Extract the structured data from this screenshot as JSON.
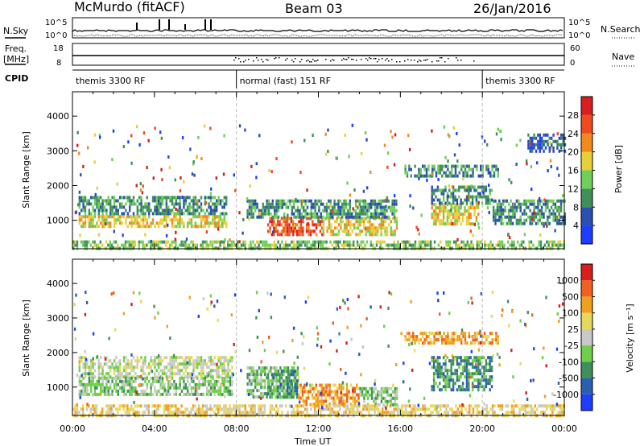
{
  "header": {
    "station": "McMurdo (fitACF)",
    "beam": "Beam 03",
    "date": "26/Jan/2016"
  },
  "aux_labels": {
    "nsky": "N.Sky",
    "nsearch": "N.Search",
    "freq": "Freq.",
    "freq_unit": "[MHz]",
    "nave": "Nave",
    "cpid": "CPID",
    "nsky_ticks": [
      "10^5",
      "10^0"
    ],
    "nsearch_ticks": [
      "10^5",
      "10^0"
    ],
    "freq_ticks": [
      "18",
      "8"
    ],
    "nave_ticks": [
      "60",
      "0"
    ]
  },
  "cpid_segments": [
    {
      "label": "themis 3300 RF",
      "start": 0,
      "end": 8
    },
    {
      "label": "normal (fast) 151 RF",
      "start": 8,
      "end": 20
    },
    {
      "label": "themis 3300 RF",
      "start": 20,
      "end": 24
    }
  ],
  "chart_data": [
    {
      "type": "heatmap",
      "name": "power",
      "xlabel": "Time UT",
      "ylabel": "Slant Range [km]",
      "xlim": [
        0,
        24
      ],
      "ylim": [
        180,
        4700
      ],
      "x_ticks": [
        0,
        4,
        8,
        12,
        16,
        20,
        24
      ],
      "x_tick_labels": [
        "00:00",
        "04:00",
        "08:00",
        "12:00",
        "16:00",
        "20:00",
        "00:00"
      ],
      "y_ticks": [
        1000,
        2000,
        3000,
        4000
      ],
      "colorbar": {
        "label": "Power [dB]",
        "ticks": [
          "4",
          "8",
          "12",
          "16",
          "20",
          "24",
          "28"
        ],
        "colors": [
          "#1f3dff",
          "#2b4fb0",
          "#3f8f5a",
          "#6fcf5a",
          "#e8cf3a",
          "#f08a1f",
          "#f04a1f",
          "#d81e1e"
        ]
      },
      "regions": [
        {
          "t": [
            0.3,
            7.5
          ],
          "r": [
            850,
            1150
          ],
          "level": 4
        },
        {
          "t": [
            0.3,
            7.5
          ],
          "r": [
            1150,
            1700
          ],
          "level": 2
        },
        {
          "t": [
            9.5,
            12.2
          ],
          "r": [
            600,
            1100
          ],
          "level": 6
        },
        {
          "t": [
            12.2,
            15.8
          ],
          "r": [
            600,
            1100
          ],
          "level": 4
        },
        {
          "t": [
            8.5,
            15.8
          ],
          "r": [
            1100,
            1600
          ],
          "level": 2
        },
        {
          "t": [
            17.5,
            19.8
          ],
          "r": [
            900,
            1500
          ],
          "level": 4
        },
        {
          "t": [
            17.5,
            20.5
          ],
          "r": [
            1500,
            2000
          ],
          "level": 2
        },
        {
          "t": [
            20.5,
            24
          ],
          "r": [
            900,
            1600
          ],
          "level": 2
        },
        {
          "t": [
            16.2,
            20.8
          ],
          "r": [
            2300,
            2600
          ],
          "level": 2
        },
        {
          "t": [
            22.2,
            24
          ],
          "r": [
            3000,
            3500
          ],
          "level": 1
        },
        {
          "t": [
            0,
            24
          ],
          "r": [
            180,
            420
          ],
          "level": 3
        }
      ]
    },
    {
      "type": "heatmap",
      "name": "velocity",
      "xlabel": "Time UT",
      "ylabel": "Slant Range [km]",
      "xlim": [
        0,
        24
      ],
      "ylim": [
        180,
        4700
      ],
      "x_ticks": [
        0,
        4,
        8,
        12,
        16,
        20,
        24
      ],
      "x_tick_labels": [
        "00:00",
        "04:00",
        "08:00",
        "12:00",
        "16:00",
        "20:00",
        "00:00"
      ],
      "y_ticks": [
        1000,
        2000,
        3000,
        4000
      ],
      "colorbar": {
        "label": "Velocity [m s⁻¹]",
        "ticks": [
          "1000",
          "500",
          "100",
          "25",
          "-25",
          "-100",
          "-500",
          "-1000"
        ],
        "colors": [
          "#1f3dff",
          "#2b5fb0",
          "#3f8f5a",
          "#6fcf4a",
          "#c8c8c8",
          "#e8d85a",
          "#f0a01f",
          "#f0601f",
          "#d81e1e"
        ]
      },
      "regions": [
        {
          "t": [
            0.3,
            7.8
          ],
          "r": [
            1300,
            1900
          ],
          "level": 4
        },
        {
          "t": [
            0.3,
            7.8
          ],
          "r": [
            800,
            1300
          ],
          "level": 3
        },
        {
          "t": [
            8.5,
            11.0
          ],
          "r": [
            700,
            1600
          ],
          "level": 3
        },
        {
          "t": [
            9.5,
            11.0
          ],
          "r": [
            700,
            1500
          ],
          "level": 2
        },
        {
          "t": [
            11.0,
            14.0
          ],
          "r": [
            500,
            1100
          ],
          "level": 6
        },
        {
          "t": [
            14.0,
            15.8
          ],
          "r": [
            500,
            1000
          ],
          "level": 3
        },
        {
          "t": [
            17.5,
            20.5
          ],
          "r": [
            900,
            1900
          ],
          "level": 2
        },
        {
          "t": [
            0,
            24
          ],
          "r": [
            180,
            500
          ],
          "level": 5
        },
        {
          "t": [
            16.2,
            20.8
          ],
          "r": [
            2300,
            2600
          ],
          "level": 6
        }
      ]
    }
  ]
}
